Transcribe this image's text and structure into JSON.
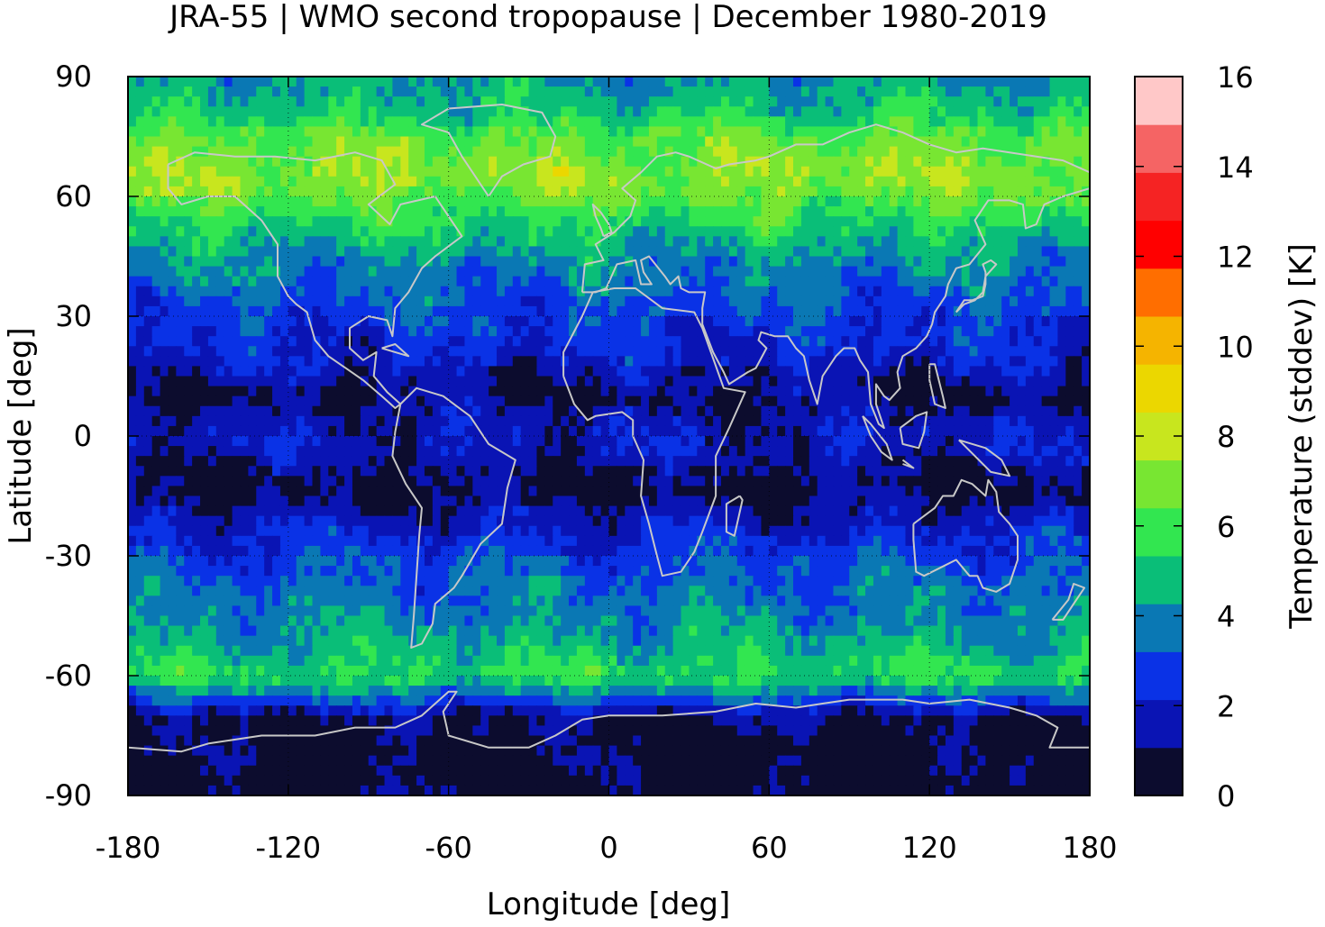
{
  "chart_data": {
    "type": "heatmap",
    "title": "JRA-55 | WMO second tropopause | December 1980-2019",
    "xlabel": "Longitude [deg]",
    "ylabel": "Latitude [deg]",
    "colorbar_label": "Temperature (stddev) [K]",
    "xlim": [
      -180,
      180
    ],
    "ylim": [
      -90,
      90
    ],
    "xticks": [
      "-180",
      "-120",
      "-60",
      "0",
      "60",
      "120",
      "180"
    ],
    "yticks": [
      "90",
      "60",
      "30",
      "0",
      "-30",
      "-60",
      "-90"
    ],
    "colorbar_ticks": [
      "16",
      "14",
      "12",
      "10",
      "8",
      "6",
      "4",
      "2",
      "0"
    ],
    "colorbar_range": [
      0,
      16
    ],
    "grid": true,
    "colorbar_levels": [
      "#0c0c2e",
      "#0a14b4",
      "#0a32e6",
      "#0a78b4",
      "#0abe78",
      "#32e650",
      "#78e632",
      "#c8e61e",
      "#ebd700",
      "#f5b400",
      "#ff6e00",
      "#ff0000",
      "#f52323",
      "#f56464",
      "#ffc8c8"
    ],
    "latitude_profile": [
      {
        "lat": 90,
        "value": 4.2
      },
      {
        "lat": 85,
        "value": 4.6
      },
      {
        "lat": 80,
        "value": 5.2
      },
      {
        "lat": 75,
        "value": 6.4
      },
      {
        "lat": 70,
        "value": 6.9
      },
      {
        "lat": 65,
        "value": 7.2
      },
      {
        "lat": 60,
        "value": 6.6
      },
      {
        "lat": 55,
        "value": 5.6
      },
      {
        "lat": 50,
        "value": 4.8
      },
      {
        "lat": 45,
        "value": 4.2
      },
      {
        "lat": 40,
        "value": 3.6
      },
      {
        "lat": 35,
        "value": 3.2
      },
      {
        "lat": 30,
        "value": 2.8
      },
      {
        "lat": 25,
        "value": 2.4
      },
      {
        "lat": 20,
        "value": 2.0
      },
      {
        "lat": 15,
        "value": 1.4
      },
      {
        "lat": 10,
        "value": 0.8
      },
      {
        "lat": 5,
        "value": 1.4
      },
      {
        "lat": 0,
        "value": 1.8
      },
      {
        "lat": -5,
        "value": 1.5
      },
      {
        "lat": -10,
        "value": 0.9
      },
      {
        "lat": -15,
        "value": 0.8
      },
      {
        "lat": -20,
        "value": 1.6
      },
      {
        "lat": -25,
        "value": 2.2
      },
      {
        "lat": -30,
        "value": 2.8
      },
      {
        "lat": -35,
        "value": 3.2
      },
      {
        "lat": -40,
        "value": 3.6
      },
      {
        "lat": -45,
        "value": 3.8
      },
      {
        "lat": -50,
        "value": 4.4
      },
      {
        "lat": -55,
        "value": 4.9
      },
      {
        "lat": -60,
        "value": 5.6
      },
      {
        "lat": -65,
        "value": 3.6
      },
      {
        "lat": -70,
        "value": 1.0
      },
      {
        "lat": -75,
        "value": 0.6
      },
      {
        "lat": -80,
        "value": 0.5
      },
      {
        "lat": -85,
        "value": 0.4
      },
      {
        "lat": -90,
        "value": 0.4
      }
    ]
  }
}
